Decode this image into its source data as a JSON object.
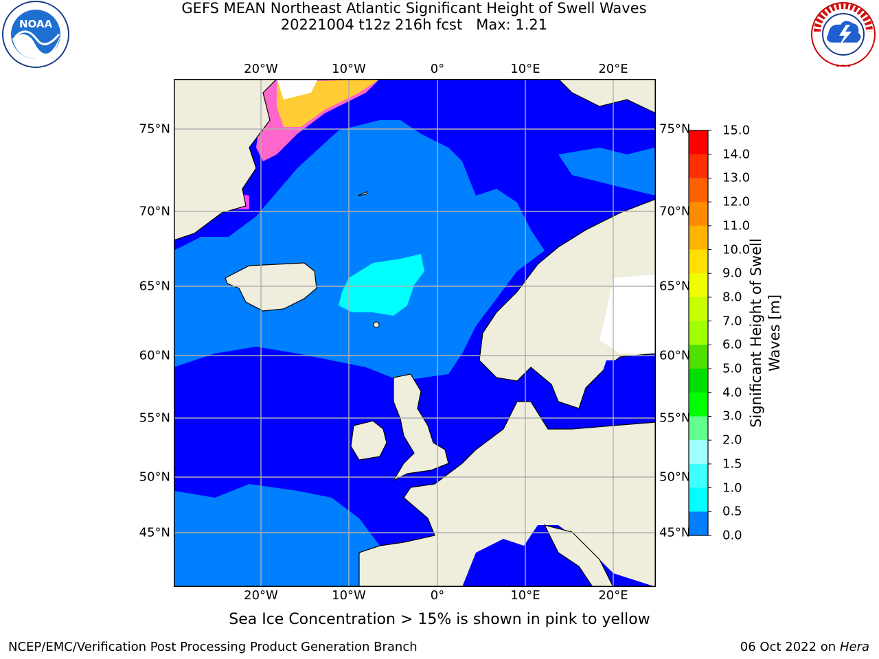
{
  "header": {
    "title_line1": "GEFS MEAN Northeast Atlantic Significant Height of Swell Waves",
    "title_line2": "20221004 t12z 216h fcst   Max: 1.21"
  },
  "logos": {
    "left": "NOAA",
    "left_ring": "NATIONAL OCEANIC AND ATMOSPHERIC ADMINISTRATION · U.S. DEPARTMENT OF COMMERCE",
    "right_ring": "NATIONAL WEATHER SERVICE"
  },
  "map": {
    "lon_labels": [
      "20°W",
      "10°W",
      "0°",
      "10°E",
      "20°E"
    ],
    "lat_labels": [
      "75°N",
      "70°N",
      "65°N",
      "60°N",
      "55°N",
      "50°N",
      "45°N"
    ],
    "colors": {
      "land": "#efeddc",
      "sea_low": "#0000ff",
      "sea_mid": "#0080ff",
      "sea_high": "#00ffff",
      "ice": "#ff66cc",
      "grid": "#b0b0b0"
    }
  },
  "colorbar": {
    "title_line1": "Significant Height of Swell",
    "title_line2": "Waves [m]",
    "tick_labels": [
      "15.0",
      "14.0",
      "13.0",
      "12.0",
      "11.0",
      "10.0",
      "9.0",
      "8.0",
      "7.0",
      "6.0",
      "5.0",
      "4.0",
      "3.0",
      "2.0",
      "1.5",
      "1.0",
      "0.5",
      "0.0"
    ],
    "colors": [
      "#ff0000",
      "#ff3000",
      "#ff6000",
      "#ff8c00",
      "#ffb400",
      "#ffe000",
      "#f0ff00",
      "#c8ff00",
      "#a0ff00",
      "#50e000",
      "#00e000",
      "#00ff00",
      "#60ff90",
      "#a0ffff",
      "#40ffff",
      "#00ffff",
      "#0080ff",
      "#0000ff"
    ]
  },
  "footer": {
    "note": "Sea Ice Concentration > 15% is shown in pink to yellow",
    "credit": "NCEP/EMC/Verification Post Processing Product Generation Branch",
    "date": "06 Oct 2022 on ",
    "machine": "Hera"
  }
}
